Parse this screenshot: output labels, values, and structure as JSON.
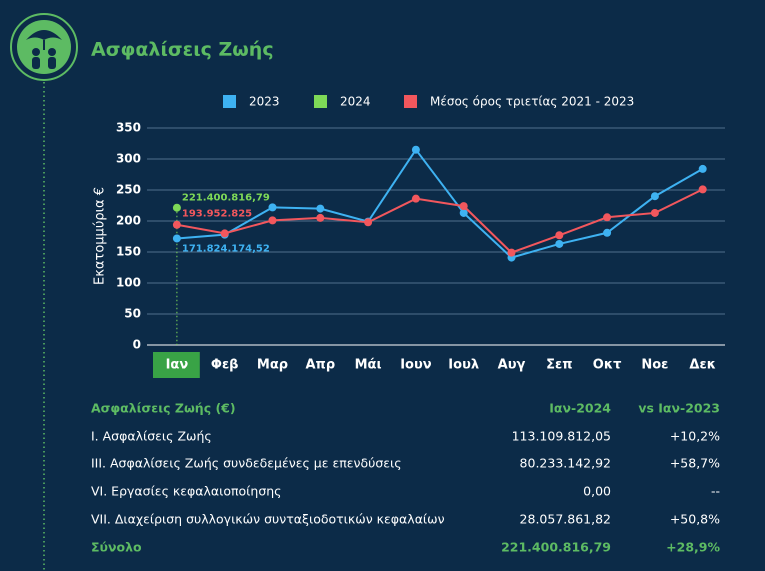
{
  "chart_data": {
    "type": "line",
    "title": "Ασφαλίσεις Ζωής",
    "ylabel": "Εκατομμύρια €",
    "categories": [
      "Ιαν",
      "Φεβ",
      "Μαρ",
      "Απρ",
      "Μάι",
      "Ιουν",
      "Ιουλ",
      "Αυγ",
      "Σεπ",
      "Οκτ",
      "Νοε",
      "Δεκ"
    ],
    "series": [
      {
        "name": "2023",
        "color": "#3eb2f2",
        "values": [
          171.82417452,
          178,
          222,
          220,
          199,
          315,
          213,
          141,
          163,
          181,
          240,
          284
        ],
        "value_labels": [
          "171.824.174,52",
          null,
          null,
          null,
          null,
          null,
          null,
          null,
          null,
          null,
          null,
          null
        ]
      },
      {
        "name": "2024",
        "color": "#7ed957",
        "values": [
          221.40081679,
          null,
          null,
          null,
          null,
          null,
          null,
          null,
          null,
          null,
          null,
          null
        ],
        "value_labels": [
          "221.400.816,79",
          null,
          null,
          null,
          null,
          null,
          null,
          null,
          null,
          null,
          null,
          null
        ]
      },
      {
        "name": "Μέσος όρος τριετίας 2021 - 2023",
        "color": "#f2575d",
        "values": [
          193.952825,
          180,
          201,
          205,
          198,
          236,
          224,
          149,
          177,
          206,
          213,
          251
        ],
        "value_labels": [
          "193.952.825",
          null,
          null,
          null,
          null,
          null,
          null,
          null,
          null,
          null,
          null,
          null
        ]
      }
    ],
    "ylim": [
      0,
      350
    ],
    "yticks": [
      0,
      50,
      100,
      150,
      200,
      250,
      300,
      350
    ],
    "grid": true
  },
  "table": {
    "header": [
      "Ασφαλίσεις Ζωής (€)",
      "Ιαν-2024",
      "vs Ιαν-2023"
    ],
    "rows": [
      [
        "I. Ασφαλίσεις  Ζωής",
        "113.109.812,05",
        "+10,2%"
      ],
      [
        "III. Ασφαλίσεις  Ζωής  συνδεδεμένες με επενδύσεις",
        "80.233.142,92",
        "+58,7%"
      ],
      [
        "VI. Εργασίες κεφαλαιοποίησης",
        "0,00",
        "--"
      ],
      [
        "VII. Διαχείριση συλλογικών συνταξιοδοτικών κεφαλαίων",
        "28.057.861,82",
        "+50,8%"
      ]
    ],
    "total": [
      "Σύνολο",
      "221.400.816,79",
      "+28,9%"
    ]
  }
}
